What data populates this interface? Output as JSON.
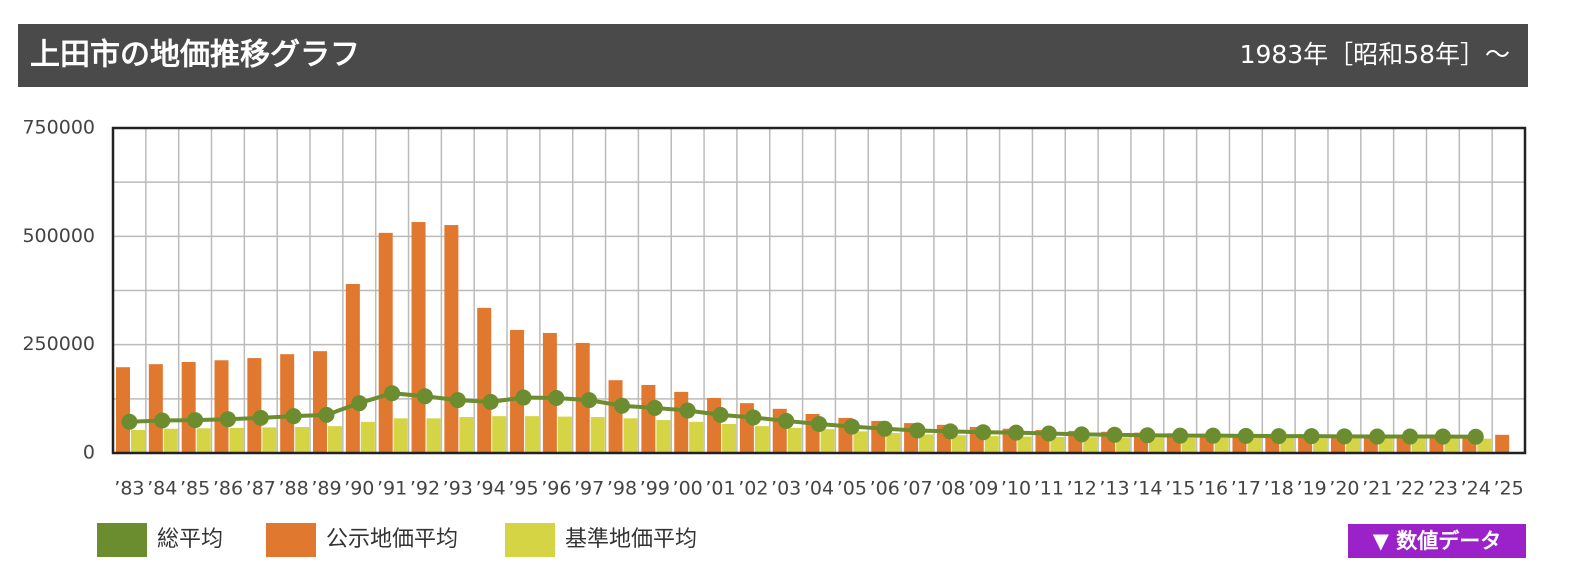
{
  "header": {
    "title": "上田市の地価推移グラフ",
    "period": "1983年［昭和58年］～"
  },
  "chart_data": {
    "type": "bar-line",
    "categories": [
      "’83",
      "’84",
      "’85",
      "’86",
      "’87",
      "’88",
      "’89",
      "’90",
      "’91",
      "’92",
      "’93",
      "’94",
      "’95",
      "’96",
      "’97",
      "’98",
      "’99",
      "’00",
      "’01",
      "’02",
      "’03",
      "’04",
      "’05",
      "’06",
      "’07",
      "’08",
      "’09",
      "’10",
      "’11",
      "’12",
      "’13",
      "’14",
      "’15",
      "’16",
      "’17",
      "’18",
      "’19",
      "’20",
      "’21",
      "’22",
      "’23",
      "’24",
      "’25"
    ],
    "series": [
      {
        "name": "総平均",
        "color": "#6b8c2f",
        "kind": "line",
        "values": [
          72000,
          75000,
          76000,
          78000,
          81000,
          85000,
          88000,
          115000,
          138000,
          131000,
          122000,
          118000,
          128000,
          127000,
          122000,
          109000,
          104000,
          98000,
          88000,
          82000,
          74000,
          67000,
          61000,
          56000,
          52000,
          50000,
          48000,
          47000,
          45000,
          43000,
          42000,
          41000,
          40000,
          40000,
          39500,
          39000,
          39000,
          38500,
          38000,
          38000,
          38000,
          37500,
          null
        ]
      },
      {
        "name": "公示地価平均",
        "color": "#e07830",
        "kind": "bar",
        "values": [
          198000,
          205000,
          210000,
          214000,
          219000,
          228000,
          235000,
          390000,
          508000,
          533000,
          526000,
          335000,
          284000,
          277000,
          254000,
          168000,
          157000,
          141000,
          127000,
          115000,
          102000,
          90000,
          81000,
          74000,
          69000,
          65000,
          60000,
          56000,
          53000,
          51000,
          49000,
          47000,
          45500,
          44000,
          43500,
          43000,
          43000,
          42500,
          42000,
          42000,
          42000,
          42000,
          42000
        ]
      },
      {
        "name": "基準地価平均",
        "color": "#d4d444",
        "kind": "bar",
        "values": [
          53000,
          56000,
          57000,
          58000,
          59000,
          60000,
          62000,
          72000,
          80000,
          80000,
          83000,
          85000,
          85000,
          84000,
          83000,
          80000,
          76000,
          72000,
          67000,
          62000,
          58000,
          55000,
          50000,
          46000,
          43000,
          41000,
          39000,
          38000,
          37000,
          36500,
          36000,
          35500,
          35000,
          35000,
          34500,
          34500,
          34000,
          34000,
          34000,
          33500,
          33500,
          33000,
          null
        ]
      }
    ],
    "ylim": [
      0,
      750000
    ],
    "yticks": [
      0,
      250000,
      500000,
      750000
    ],
    "y_minor_ticks": [
      125000,
      375000,
      625000
    ],
    "grid": true
  },
  "button": "▼ 数値データ"
}
